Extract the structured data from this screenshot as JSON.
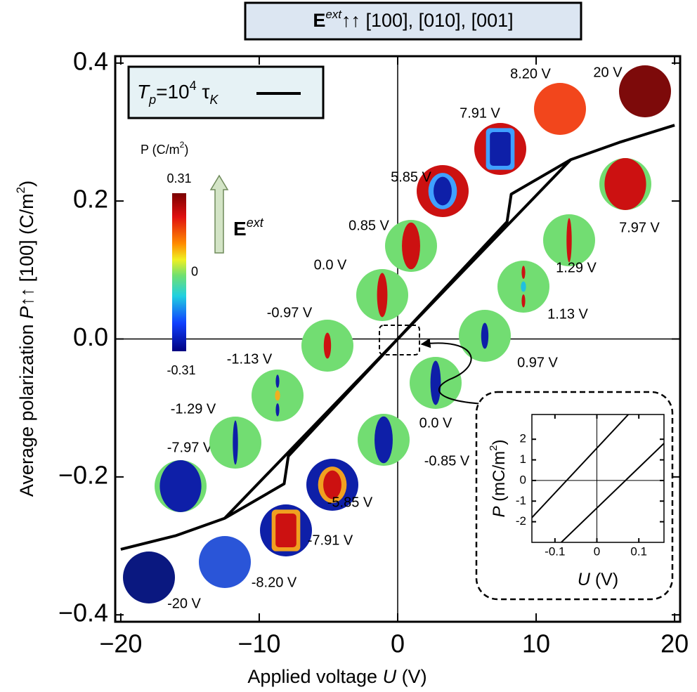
{
  "chart_data": [
    {
      "type": "line",
      "title": {
        "E": "E",
        "sup": "ext",
        "rest": "↑↑ [100], [010], [001]"
      },
      "xlabel": {
        "pre": "Applied voltage ",
        "var": "U",
        "post": " (V)"
      },
      "ylabel": {
        "pre": "Average polarization ",
        "var": "P",
        "post": "↑↑ [100] (C/m",
        "sup": "2",
        "end": ")"
      },
      "xlim": [
        -20.4,
        20.4
      ],
      "ylim": [
        -0.41,
        0.41
      ],
      "xticks": [
        {
          "value": -20,
          "label": "−20"
        },
        {
          "value": -10,
          "label": "−10"
        },
        0,
        10,
        20
      ],
      "yticks": [
        {
          "value": -0.4,
          "label": "−0.4"
        },
        {
          "value": -0.2,
          "label": "−0.2"
        },
        {
          "value": 0,
          "label": "0.0"
        },
        0.2,
        0.4
      ],
      "zero_lines": true,
      "series": [
        {
          "color": "#000000",
          "x": [
            -20,
            -16,
            -12.5,
            12.5,
            16,
            20
          ],
          "values": [
            -0.305,
            -0.285,
            -0.26,
            0.26,
            0.285,
            0.31
          ]
        },
        {
          "color": "#000000",
          "x": [
            -12.5,
            -8.2,
            -7.9,
            7.9,
            8.2,
            12.5
          ],
          "values": [
            -0.26,
            -0.21,
            -0.17,
            0.17,
            0.21,
            0.26
          ]
        }
      ],
      "legend": {
        "T": "T",
        "sub": "p",
        "eq": "=10",
        "sup": "4",
        "tau": " τ",
        "tsub": "K"
      },
      "colorbar": {
        "label": {
          "pre": "P (C/m",
          "sup": "2",
          "end": ")"
        },
        "lim": [
          -0.31,
          0.31
        ],
        "ticks": [
          0.31,
          0,
          {
            "value": -0.31,
            "label": "-0.31"
          }
        ]
      },
      "field": {
        "E": "E",
        "sup": "ext"
      },
      "snapshots": [
        {
          "label": "0.0 V"
        },
        {
          "label": "0.85 V"
        },
        {
          "label": "5.85 V"
        },
        {
          "label": "7.91 V"
        },
        {
          "label": "8.20 V"
        },
        {
          "label": "20 V"
        },
        {
          "label": "7.97 V"
        },
        {
          "label": "1.29 V"
        },
        {
          "label": "1.13 V"
        },
        {
          "label": "0.97 V"
        },
        {
          "label": "0.0 V"
        },
        {
          "label": "-0.85 V"
        },
        {
          "label": "-5.85 V"
        },
        {
          "label": "-7.91 V"
        },
        {
          "label": "-8.20 V"
        },
        {
          "label": "-20 V"
        },
        {
          "label": "-7.97 V"
        },
        {
          "label": "-1.29 V"
        },
        {
          "label": "-1.13 V"
        },
        {
          "label": "-0.97 V"
        }
      ]
    },
    {
      "type": "line",
      "xlabel": {
        "var": "U",
        "post": " (V)"
      },
      "ylabel": {
        "var": "P",
        "post": " (mC/m",
        "sup": "2",
        "end": ")"
      },
      "xlim": [
        -0.155,
        0.16
      ],
      "ylim": [
        -3.0,
        3.2
      ],
      "xticks": [
        {
          "value": -0.1,
          "label": "-0.1"
        },
        0,
        0.1
      ],
      "yticks": [
        {
          "value": -2,
          "label": "-2"
        },
        {
          "value": -1,
          "label": "-1"
        },
        0,
        1,
        2
      ],
      "zero_lines": true,
      "series": [
        {
          "color": "#000000",
          "x": [
            -0.155,
            0.075
          ],
          "values": [
            -1.8,
            3.2
          ]
        },
        {
          "color": "#000000",
          "x": [
            -0.085,
            0.16
          ],
          "values": [
            -3.0,
            1.8
          ]
        }
      ]
    }
  ]
}
